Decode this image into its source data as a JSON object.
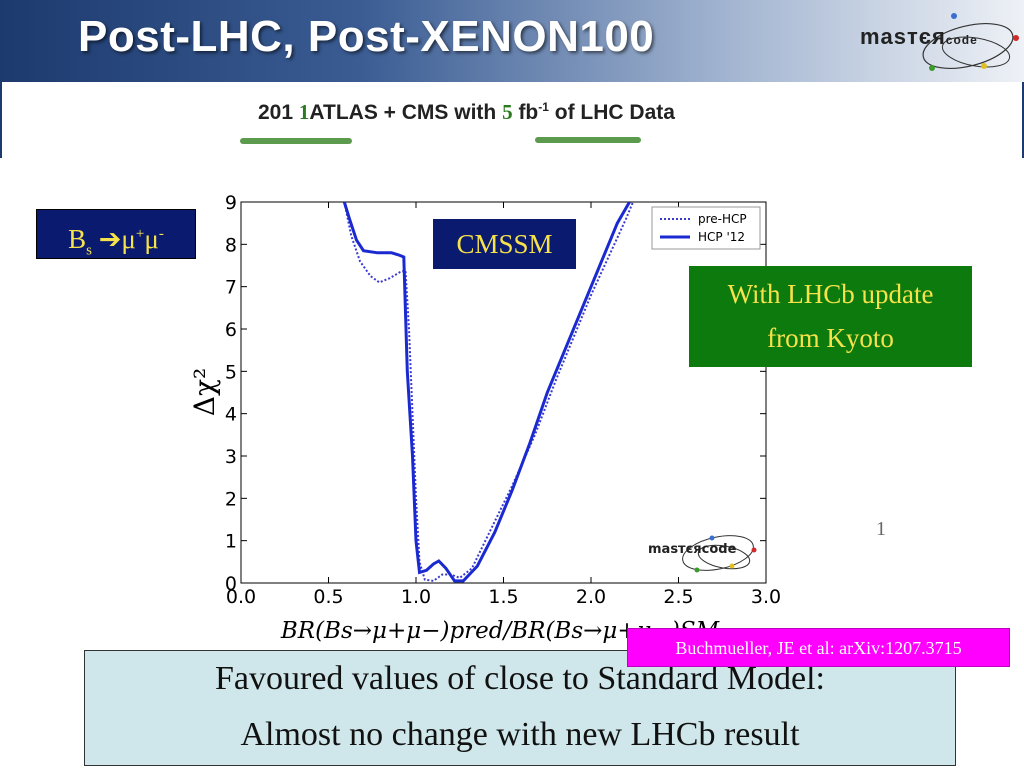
{
  "header": {
    "title": "Post-LHC, Post-XENON100",
    "logo_text_main": "masтєя",
    "logo_text_small": "code"
  },
  "subtitle": {
    "prefix": "201",
    "digit1": "1",
    "middle": "ATLAS + CMS with",
    "digit2": "5",
    "unit": "fb",
    "unit_sup": "-1",
    "suffix": "of LHC Data"
  },
  "labels": {
    "bs_main": "B",
    "bs_sub": "s",
    "bs_arrow": "➔",
    "bs_mu": "μ",
    "bs_plus": "+",
    "bs_mu2": "μ",
    "bs_minus": "-",
    "cmssm": "CMSSM",
    "lhcb_line1": "With LHCb update",
    "lhcb_line2": "from Kyoto",
    "citation": "Buchmueller, JE et al: arXiv:1207.3715",
    "page_number": "1"
  },
  "bottom": {
    "line1": "Favoured values of close to Standard Model:",
    "line2": "Almost no change with new LHCb result"
  },
  "chart_data": {
    "type": "line",
    "title": "",
    "xlabel": "BR(Bs→μ+μ−)pred/BR(Bs→μ+μ−)SM",
    "ylabel": "Δχ²",
    "xlim": [
      0.0,
      3.0
    ],
    "ylim": [
      0,
      9
    ],
    "x_ticks": [
      "0.0",
      "0.5",
      "1.0",
      "1.5",
      "2.0",
      "2.5",
      "3.0"
    ],
    "y_ticks": [
      "0",
      "1",
      "2",
      "3",
      "4",
      "5",
      "6",
      "7",
      "8",
      "9"
    ],
    "legend_position": "top-right",
    "inset_logo": "masтєяcode",
    "series": [
      {
        "name": "pre-HCP",
        "style": "dotted",
        "color": "#3a3acf",
        "points": [
          [
            0.59,
            9.0
          ],
          [
            0.63,
            8.2
          ],
          [
            0.68,
            7.6
          ],
          [
            0.74,
            7.25
          ],
          [
            0.79,
            7.1
          ],
          [
            0.85,
            7.2
          ],
          [
            0.91,
            7.35
          ],
          [
            0.94,
            7.38
          ],
          [
            0.96,
            6.0
          ],
          [
            0.98,
            4.0
          ],
          [
            1.0,
            2.0
          ],
          [
            1.02,
            0.5
          ],
          [
            1.05,
            0.08
          ],
          [
            1.1,
            0.05
          ],
          [
            1.15,
            0.2
          ],
          [
            1.2,
            0.2
          ],
          [
            1.25,
            0.12
          ],
          [
            1.32,
            0.35
          ],
          [
            1.42,
            1.2
          ],
          [
            1.55,
            2.3
          ],
          [
            1.68,
            3.5
          ],
          [
            1.8,
            4.8
          ],
          [
            1.9,
            5.8
          ],
          [
            2.0,
            6.8
          ],
          [
            2.1,
            7.7
          ],
          [
            2.2,
            8.6
          ],
          [
            2.24,
            9.0
          ]
        ]
      },
      {
        "name": "HCP '12",
        "style": "solid",
        "color": "#1a2ad0",
        "points": [
          [
            0.59,
            9.0
          ],
          [
            0.62,
            8.6
          ],
          [
            0.66,
            8.1
          ],
          [
            0.7,
            7.85
          ],
          [
            0.78,
            7.8
          ],
          [
            0.86,
            7.8
          ],
          [
            0.9,
            7.75
          ],
          [
            0.93,
            7.7
          ],
          [
            0.95,
            5.0
          ],
          [
            0.98,
            3.0
          ],
          [
            1.0,
            1.0
          ],
          [
            1.02,
            0.25
          ],
          [
            1.06,
            0.3
          ],
          [
            1.1,
            0.45
          ],
          [
            1.13,
            0.52
          ],
          [
            1.17,
            0.35
          ],
          [
            1.22,
            0.05
          ],
          [
            1.27,
            0.05
          ],
          [
            1.35,
            0.4
          ],
          [
            1.45,
            1.2
          ],
          [
            1.55,
            2.2
          ],
          [
            1.65,
            3.3
          ],
          [
            1.75,
            4.5
          ],
          [
            1.85,
            5.5
          ],
          [
            1.95,
            6.5
          ],
          [
            2.05,
            7.5
          ],
          [
            2.15,
            8.5
          ],
          [
            2.22,
            9.0
          ]
        ]
      }
    ]
  }
}
